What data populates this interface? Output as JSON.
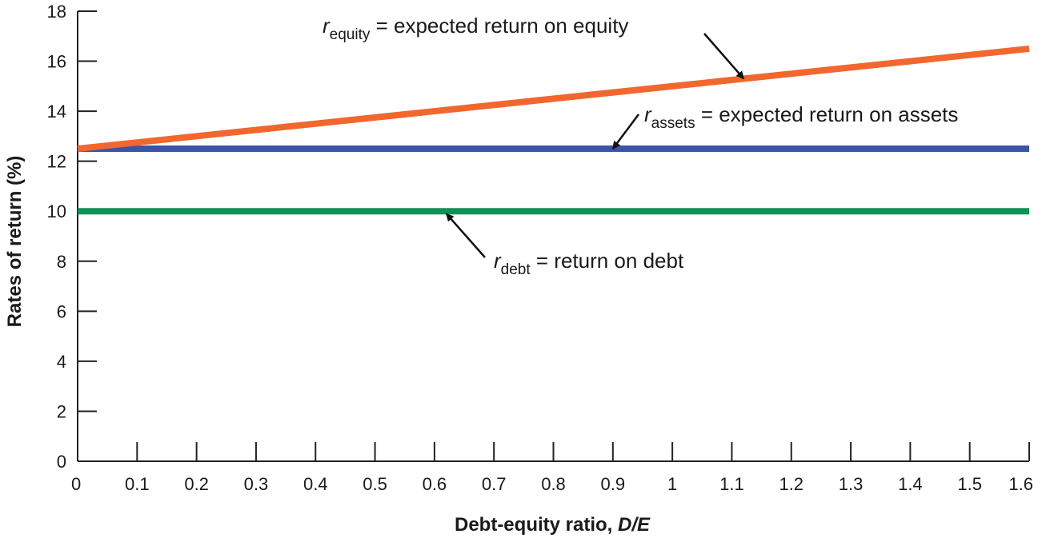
{
  "chart_data": {
    "type": "line",
    "xlabel": "Debt-equity ratio, ",
    "xlabel_italic": "D/E",
    "ylabel": "Rates of return (%)",
    "xlim": [
      0,
      1.6
    ],
    "ylim": [
      0,
      18
    ],
    "x_ticks": [
      0,
      0.1,
      0.2,
      0.3,
      0.4,
      0.5,
      0.6,
      0.7,
      0.8,
      0.9,
      1,
      1.1,
      1.2,
      1.3,
      1.4,
      1.5,
      1.6
    ],
    "x_tick_labels": [
      "0",
      "0.1",
      "0.2",
      "0.3",
      "0.4",
      "0.5",
      "0.6",
      "0.7",
      "0.8",
      "0.9",
      "1",
      "1.1",
      "1.2",
      "1.3",
      "1.4",
      "1.5",
      "1.6"
    ],
    "y_ticks": [
      0,
      2,
      4,
      6,
      8,
      10,
      12,
      14,
      16,
      18
    ],
    "y_tick_labels": [
      "0",
      "2",
      "4",
      "6",
      "8",
      "10",
      "12",
      "14",
      "16",
      "18"
    ],
    "grid": false,
    "legend": "none",
    "series": [
      {
        "key": "equity",
        "x": [
          0,
          1.6
        ],
        "y": [
          12.5,
          16.5
        ],
        "color": "#f2672e"
      },
      {
        "key": "assets",
        "x": [
          0,
          1.6
        ],
        "y": [
          12.5,
          12.5
        ],
        "color": "#3b54a6"
      },
      {
        "key": "debt",
        "x": [
          0,
          1.6
        ],
        "y": [
          10,
          10
        ],
        "color": "#12905a"
      }
    ],
    "annotations": [
      {
        "key": "equity",
        "var": "r",
        "sub": "equity",
        "text": " = expected return on equity",
        "target": [
          1.12,
          15.3
        ]
      },
      {
        "key": "assets",
        "var": "r",
        "sub": "assets",
        "text": " = expected return on assets",
        "target": [
          0.9,
          12.5
        ]
      },
      {
        "key": "debt",
        "var": "r",
        "sub": "debt",
        "text": " = return on debt",
        "target": [
          0.62,
          9.9
        ]
      }
    ]
  }
}
